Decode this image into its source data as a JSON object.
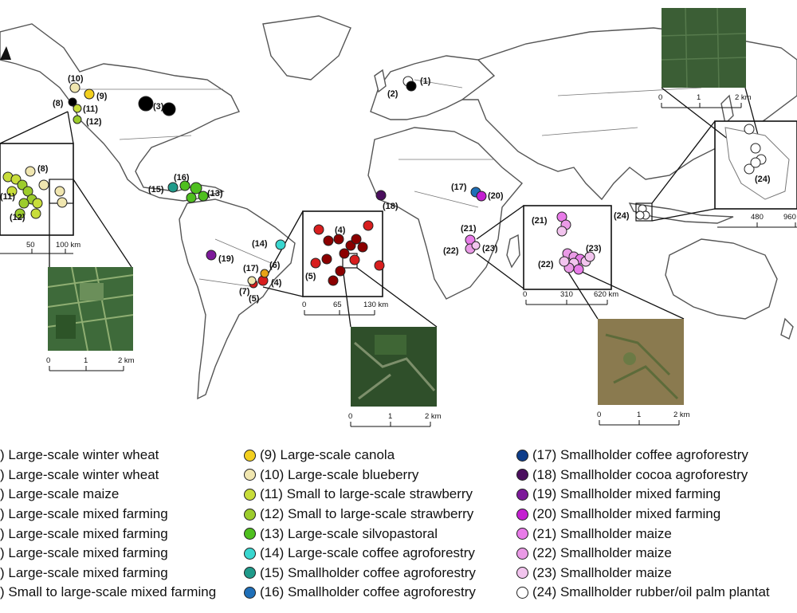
{
  "site_labels": [
    "(1)",
    "(2)",
    "(3)",
    "(4)",
    "(5)",
    "(6)",
    "(7)",
    "(8)",
    "(9)",
    "(10)",
    "(11)",
    "(12)",
    "(13)",
    "(14)",
    "(15)",
    "(16)",
    "(17)",
    "(18)",
    "(19)",
    "(20)",
    "(21)",
    "(22)",
    "(23)",
    "(24)"
  ],
  "scalebars": {
    "na_inset": [
      "0",
      "50",
      "100 km"
    ],
    "na_sat": [
      "0",
      "1",
      "2 km"
    ],
    "sa_inset": [
      "0",
      "65",
      "130 km"
    ],
    "sa_sat": [
      "0",
      "1",
      "2 km"
    ],
    "af_inset": [
      "0",
      "310",
      "620 km"
    ],
    "af_sat": [
      "0",
      "1",
      "2 km"
    ],
    "asia_inset": [
      "0",
      "480",
      "960"
    ],
    "asia_sat": [
      "0",
      "1",
      "2 km"
    ]
  },
  "colors": {
    "black": "#000000",
    "white": "#ffffff",
    "yellow": "#f2cf1e",
    "orange": "#e8a317",
    "red": "#d81e1e",
    "darkred": "#8b0000",
    "cream": "#f0e6b0",
    "lime": "#c8dd3a",
    "yellowgreen": "#9ccc2c",
    "green": "#4fbf1f",
    "cyan": "#39d6cf",
    "teal": "#1f9a8a",
    "blue": "#1f6fb8",
    "navy": "#0e3d8a",
    "darkpurple": "#4b0f5e",
    "purple": "#7d1a9a",
    "magenta": "#c41fd1",
    "pink1": "#e87be8",
    "pink2": "#ea9ae6",
    "pink3": "#f2c4ee"
  },
  "legend": {
    "col1": [
      {
        "text": ") Large-scale winter wheat",
        "color": "#ffffff"
      },
      {
        "text": ") Large-scale winter wheat",
        "color": "#ffffff"
      },
      {
        "text": ") Large-scale maize",
        "color": "#ffffff"
      },
      {
        "text": ") Large-scale mixed farming",
        "color": "#ffffff"
      },
      {
        "text": ") Large-scale mixed farming",
        "color": "#ffffff"
      },
      {
        "text": ") Large-scale mixed farming",
        "color": "#ffffff"
      },
      {
        "text": ") Large-scale mixed farming",
        "color": "#ffffff"
      },
      {
        "text": ") Small to large-scale mixed farming",
        "color": "#ffffff"
      }
    ],
    "col2": [
      {
        "text": "(9) Large-scale canola",
        "color": "#f2cf1e"
      },
      {
        "text": "(10) Large-scale blueberry",
        "color": "#f0e6b0"
      },
      {
        "text": "(11) Small to large-scale strawberry",
        "color": "#c8dd3a"
      },
      {
        "text": "(12) Small to large-scale strawberry",
        "color": "#9ccc2c"
      },
      {
        "text": "(13) Large-scale silvopastoral",
        "color": "#4fbf1f"
      },
      {
        "text": "(14) Large-scale coffee agroforestry",
        "color": "#39d6cf"
      },
      {
        "text": "(15) Smallholder coffee agroforestry",
        "color": "#1f9a8a"
      },
      {
        "text": "(16) Smallholder coffee agroforestry",
        "color": "#1f6fb8"
      }
    ],
    "col3": [
      {
        "text": "(17) Smallholder coffee agroforestry",
        "color": "#0e3d8a"
      },
      {
        "text": "(18) Smallholder cocoa agroforestry",
        "color": "#4b0f5e"
      },
      {
        "text": "(19) Smallholder mixed farming",
        "color": "#7d1a9a"
      },
      {
        "text": "(20) Smallholder mixed farming",
        "color": "#c41fd1"
      },
      {
        "text": "(21) Smallholder maize",
        "color": "#e87be8"
      },
      {
        "text": "(22) Smallholder maize",
        "color": "#ea9ae6"
      },
      {
        "text": "(23) Smallholder maize",
        "color": "#f2c4ee"
      },
      {
        "text": "(24) Smallholder rubber/oil palm plantat",
        "color": "#ffffff"
      }
    ]
  }
}
